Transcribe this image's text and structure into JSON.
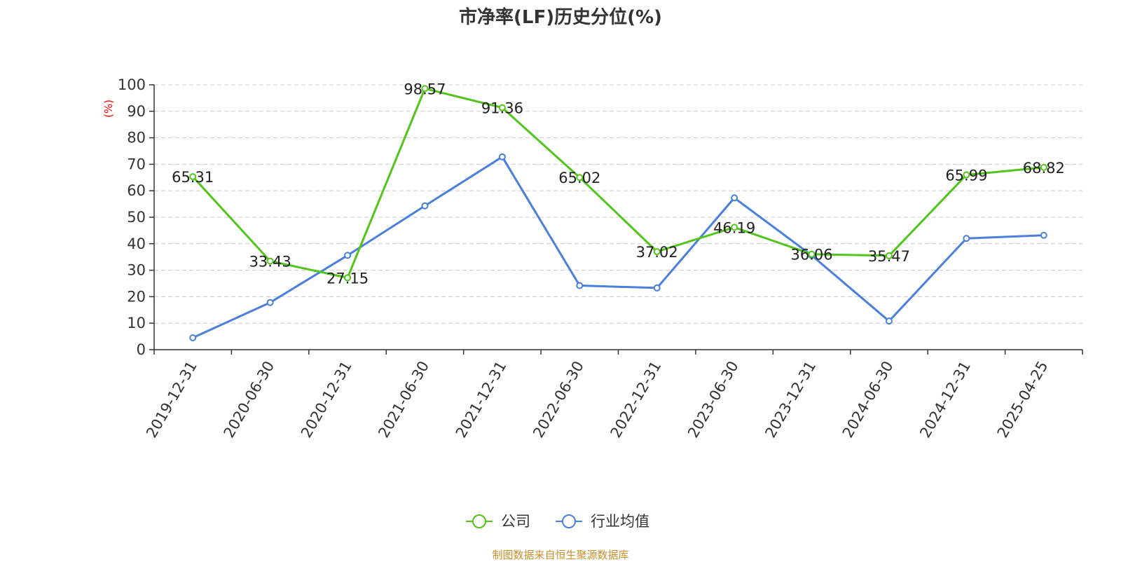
{
  "title": "市净率(LF)历史分位(%)",
  "source_note": "制图数据来自恒生聚源数据库",
  "colors": {
    "company": "#52c41a",
    "industry": "#4a7fdc",
    "grid": "#cccccc",
    "axis": "#333333"
  },
  "chart_data": {
    "type": "line",
    "title": "市净率(LF)历史分位(%)",
    "xlabel": "",
    "ylabel": "(%)",
    "ylim": [
      0,
      100
    ],
    "yticks": [
      0,
      10,
      20,
      30,
      40,
      50,
      60,
      70,
      80,
      90,
      100
    ],
    "grid": true,
    "legend_position": "bottom-center",
    "categories": [
      "2019-12-31",
      "2020-06-30",
      "2020-12-31",
      "2021-06-30",
      "2021-12-31",
      "2022-06-30",
      "2022-12-31",
      "2023-06-30",
      "2023-12-31",
      "2024-06-30",
      "2024-12-31",
      "2025-04-25"
    ],
    "series": [
      {
        "name": "公司",
        "color": "#52c41a",
        "show_labels": true,
        "values": [
          65.31,
          33.43,
          27.15,
          98.57,
          91.36,
          65.02,
          37.02,
          46.19,
          36.06,
          35.47,
          65.99,
          68.82
        ],
        "labels": [
          "65.31",
          "33.43",
          "27.15",
          "98.57",
          "91.36",
          "65.02",
          "37.02",
          "46.19",
          "36.06",
          "35.47",
          "65.99",
          "68.82"
        ]
      },
      {
        "name": "行业均值",
        "color": "#4a7fdc",
        "show_labels": false,
        "values": [
          4.5,
          17.8,
          35.6,
          54.3,
          72.8,
          24.2,
          23.3,
          57.3,
          35.6,
          10.8,
          42.0,
          43.2
        ]
      }
    ]
  }
}
